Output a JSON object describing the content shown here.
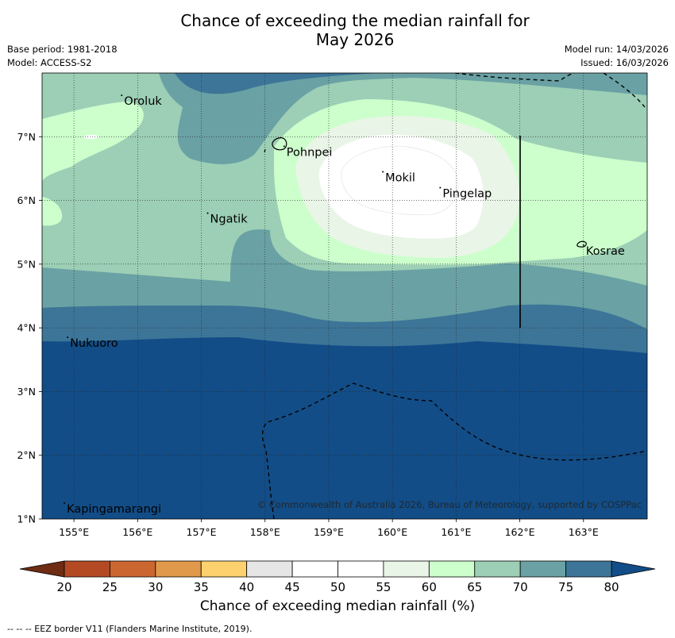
{
  "title_line1": "Chance of exceeding the median rainfall for",
  "title_line2": "May 2026",
  "meta_left": [
    "Base period: 1981-2018",
    "Model: ACCESS-S2"
  ],
  "meta_right": [
    "Model run: 14/03/2026",
    "Issued: 16/03/2026"
  ],
  "lat_ticks": [
    {
      "v": 1,
      "label": "1°N"
    },
    {
      "v": 2,
      "label": "2°N"
    },
    {
      "v": 3,
      "label": "3°N"
    },
    {
      "v": 4,
      "label": "4°N"
    },
    {
      "v": 5,
      "label": "5°N"
    },
    {
      "v": 6,
      "label": "6°N"
    },
    {
      "v": 7,
      "label": "7°N"
    }
  ],
  "lon_ticks": [
    {
      "v": 155,
      "label": "155°E"
    },
    {
      "v": 156,
      "label": "156°E"
    },
    {
      "v": 157,
      "label": "157°E"
    },
    {
      "v": 158,
      "label": "158°E"
    },
    {
      "v": 159,
      "label": "159°E"
    },
    {
      "v": 160,
      "label": "160°E"
    },
    {
      "v": 161,
      "label": "161°E"
    },
    {
      "v": 162,
      "label": "162°E"
    },
    {
      "v": 163,
      "label": "163°E"
    }
  ],
  "places": [
    {
      "name": "Oroluk",
      "lon": 155.75,
      "lat": 7.65
    },
    {
      "name": "Pohnpei",
      "lon": 158.3,
      "lat": 6.85
    },
    {
      "name": "Mokil",
      "lon": 159.85,
      "lat": 6.45
    },
    {
      "name": "Pingelap",
      "lon": 160.75,
      "lat": 6.2
    },
    {
      "name": "Ngatik",
      "lon": 157.1,
      "lat": 5.8
    },
    {
      "name": "Kosrae",
      "lon": 163.0,
      "lat": 5.3
    },
    {
      "name": "Nukuoro",
      "lon": 154.9,
      "lat": 3.85
    },
    {
      "name": "Kapingamarangi",
      "lon": 154.85,
      "lat": 1.25
    }
  ],
  "copyright": "© Commonwealth of Australia 2026, Bureau of Meteorology, supported by COSPPac",
  "colorbar": {
    "ticks": [
      "20",
      "25",
      "30",
      "35",
      "40",
      "45",
      "50",
      "55",
      "60",
      "65",
      "70",
      "75",
      "80"
    ],
    "colors": [
      "#6e2c12",
      "#b34a24",
      "#cc6630",
      "#e0984a",
      "#fdd26e",
      "#e6e6e6",
      "#ffffff",
      "#ffffff",
      "#e9f5e7",
      "#ccffcc",
      "#9ccfb5",
      "#6aa1a4",
      "#3d7598",
      "#124d87"
    ],
    "title": "Chance of exceeding median rainfall (%)"
  },
  "footnote": "--  --  -- EEZ border V11 (Flanders Marine Institute, 2019)."
}
